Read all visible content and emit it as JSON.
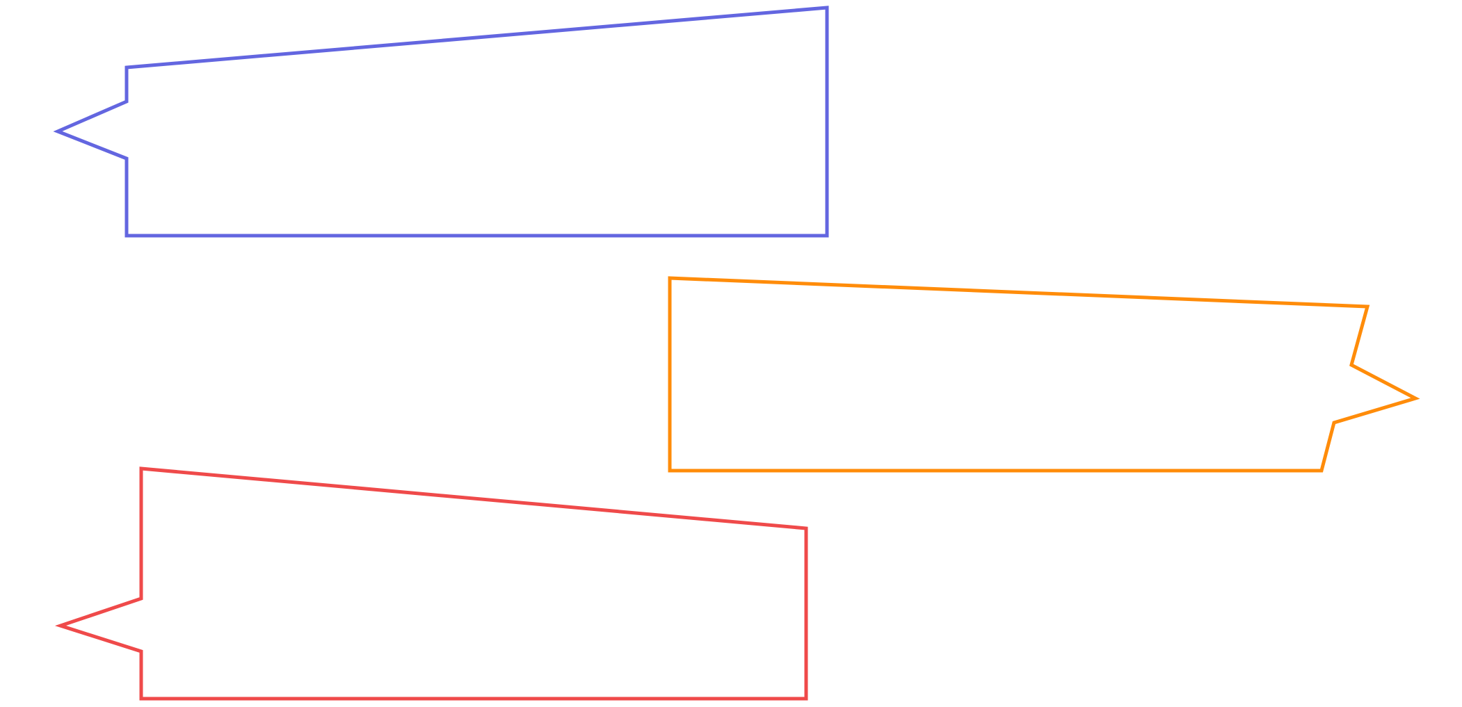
{
  "shapes": [
    {
      "id": "blue-arrow-shape",
      "direction": "left",
      "color": "#6366e0"
    },
    {
      "id": "orange-arrow-shape",
      "direction": "right",
      "color": "#ff8c0a"
    },
    {
      "id": "red-arrow-shape",
      "direction": "left",
      "color": "#ef4a4a"
    }
  ]
}
